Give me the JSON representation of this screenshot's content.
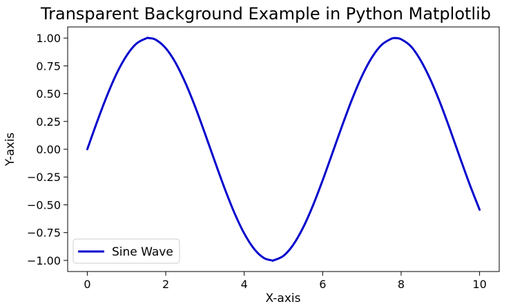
{
  "chart_data": {
    "type": "line",
    "title": "Transparent Background Example in Python Matplotlib",
    "xlabel": "X-axis",
    "ylabel": "Y-axis",
    "xlim": [
      -0.5,
      10.5
    ],
    "ylim": [
      -1.1,
      1.1
    ],
    "x_ticks": [
      0,
      2,
      4,
      6,
      8,
      10
    ],
    "y_ticks": [
      1.0,
      0.75,
      0.5,
      0.25,
      0.0,
      -0.25,
      -0.5,
      -0.75,
      -1.0
    ],
    "x_tick_labels": [
      "0",
      "2",
      "4",
      "6",
      "8",
      "10"
    ],
    "y_tick_labels": [
      "1.00",
      "0.75",
      "0.50",
      "0.25",
      "0.00",
      "−0.25",
      "−0.50",
      "−0.75",
      "−1.00"
    ],
    "grid": false,
    "legend_position": "lower-left",
    "series": [
      {
        "name": "Sine Wave",
        "color": "#0000cc",
        "x": [
          0.0,
          0.25,
          0.5,
          0.75,
          1.0,
          1.25,
          1.5,
          1.571,
          1.75,
          2.0,
          2.25,
          2.5,
          2.75,
          3.0,
          3.25,
          3.5,
          3.75,
          4.0,
          4.25,
          4.5,
          4.712,
          4.75,
          5.0,
          5.25,
          5.5,
          5.75,
          6.0,
          6.25,
          6.5,
          6.75,
          7.0,
          7.25,
          7.5,
          7.75,
          7.854,
          8.0,
          8.25,
          8.5,
          8.75,
          9.0,
          9.25,
          9.5,
          9.75,
          10.0
        ],
        "y": [
          0.0,
          0.247,
          0.479,
          0.682,
          0.841,
          0.949,
          0.997,
          1.0,
          0.984,
          0.909,
          0.778,
          0.598,
          0.382,
          0.141,
          -0.108,
          -0.351,
          -0.572,
          -0.757,
          -0.895,
          -0.978,
          -1.0,
          -0.999,
          -0.959,
          -0.859,
          -0.706,
          -0.508,
          -0.279,
          -0.033,
          0.215,
          0.45,
          0.657,
          0.823,
          0.938,
          0.994,
          1.0,
          0.989,
          0.925,
          0.798,
          0.624,
          0.412,
          0.174,
          -0.075,
          -0.319,
          -0.544
        ]
      }
    ]
  }
}
